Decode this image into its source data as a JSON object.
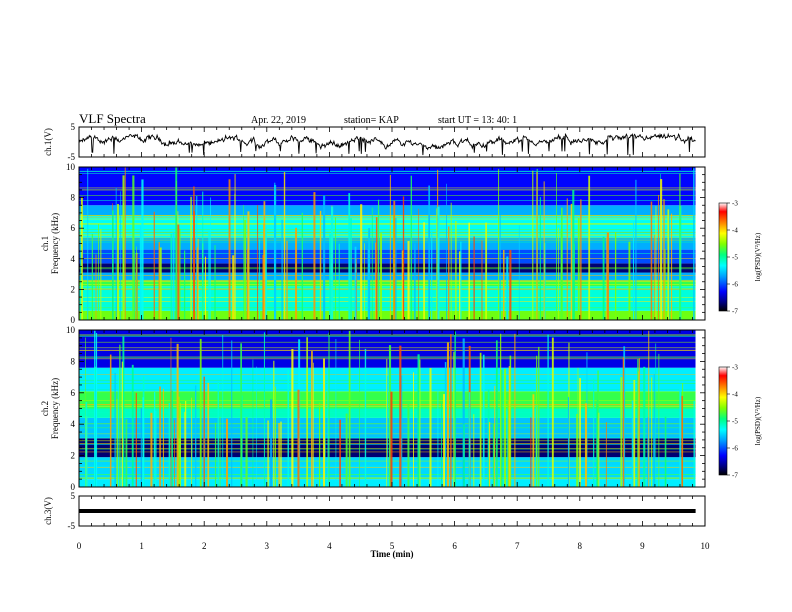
{
  "header": {
    "title": "VLF Spectra",
    "date": "Apr. 22, 2019",
    "station": "station= KAP",
    "start": "start  UT =   13: 40: 1"
  },
  "colors": {
    "trace": "#000000",
    "colormap": [
      "#000000",
      "#000080",
      "#0000ff",
      "#00a0ff",
      "#00ffff",
      "#00ff80",
      "#80ff00",
      "#ffff00",
      "#ff8000",
      "#ff0000",
      "#ffffff"
    ]
  },
  "chart_data": [
    {
      "type": "line",
      "panel": "ch1-waveform",
      "ylabel": "ch.1(V)",
      "ylim": [
        -5,
        5
      ],
      "yticks": [
        -5,
        5
      ],
      "xlim": [
        0,
        10
      ],
      "x_range_minutes": [
        0,
        9.85
      ],
      "values_note": "noisy waveform, roughly between -3 and 2 V"
    },
    {
      "type": "heatmap",
      "panel": "ch1-spectrogram",
      "ylabel": "ch.1\nFrequency (kHz)",
      "ylim": [
        0,
        10
      ],
      "yticks": [
        0,
        2,
        4,
        6,
        8,
        10
      ],
      "xlim": [
        0,
        10
      ],
      "x_range_minutes": [
        0,
        9.85
      ],
      "colorbar": {
        "label": "log(PSD)(V²/Hz)",
        "range": [
          -7,
          -3
        ],
        "ticks": [
          "-3",
          "-4",
          "-5",
          "-6",
          "-7"
        ]
      },
      "bands": [
        {
          "f": [
            0,
            0.6
          ],
          "level": -4.4
        },
        {
          "f": [
            0.6,
            2.2
          ],
          "level": -5.1
        },
        {
          "f": [
            2.2,
            2.6
          ],
          "level": -4.6
        },
        {
          "f": [
            2.6,
            3.1
          ],
          "level": -5.6
        },
        {
          "f": [
            3.1,
            3.7
          ],
          "level": -6.6
        },
        {
          "f": [
            3.7,
            4.6
          ],
          "level": -5.9
        },
        {
          "f": [
            4.6,
            5.4
          ],
          "level": -5.6
        },
        {
          "f": [
            5.4,
            6.8
          ],
          "level": -5.2
        },
        {
          "f": [
            6.8,
            7.5
          ],
          "level": -5.6
        },
        {
          "f": [
            7.5,
            10
          ],
          "level": -6.1
        }
      ]
    },
    {
      "type": "heatmap",
      "panel": "ch2-spectrogram",
      "ylabel": "ch.2\nFrequency (kHz)",
      "ylim": [
        0,
        10
      ],
      "yticks": [
        0,
        2,
        4,
        6,
        8,
        10
      ],
      "xlim": [
        0,
        10
      ],
      "x_range_minutes": [
        0,
        9.85
      ],
      "colorbar": {
        "label": "log(PSD)(V²/Hz)",
        "range": [
          -7,
          -3
        ],
        "ticks": [
          "-3",
          "-4",
          "-5",
          "-6",
          "-7"
        ]
      },
      "bands": [
        {
          "f": [
            0,
            0.5
          ],
          "level": -5.3
        },
        {
          "f": [
            0.5,
            1.9
          ],
          "level": -5.4
        },
        {
          "f": [
            1.9,
            3.1
          ],
          "level": -6.6
        },
        {
          "f": [
            3.1,
            4.4
          ],
          "level": -5.5
        },
        {
          "f": [
            4.4,
            5.0
          ],
          "level": -5.0
        },
        {
          "f": [
            5.0,
            6.1
          ],
          "level": -4.6
        },
        {
          "f": [
            6.1,
            7.6
          ],
          "level": -5.3
        },
        {
          "f": [
            7.6,
            10
          ],
          "level": -6.2
        }
      ]
    },
    {
      "type": "line",
      "panel": "ch3-waveform",
      "ylabel": "ch.3(V)",
      "ylim": [
        -5,
        5
      ],
      "yticks": [
        -5,
        5
      ],
      "xlim": [
        0,
        10
      ],
      "x_range_minutes": [
        0,
        9.85
      ],
      "constant_value": 0
    }
  ],
  "xaxis": {
    "label": "Time (min)",
    "ticks": [
      "0",
      "1",
      "2",
      "3",
      "4",
      "5",
      "6",
      "7",
      "8",
      "9",
      "10"
    ]
  }
}
